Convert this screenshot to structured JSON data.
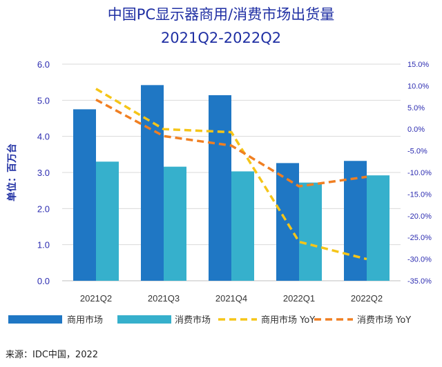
{
  "chart_data": {
    "type": "bar",
    "title": "中国PC显示器商用/消费市场出货量",
    "subtitle": "2021Q2-2022Q2",
    "ylabel": "单位：百万台",
    "categories": [
      "2021Q2",
      "2021Q3",
      "2021Q4",
      "2022Q1",
      "2022Q2"
    ],
    "ylim": [
      0,
      6
    ],
    "y_ticks": [
      "0.0",
      "1.0",
      "2.0",
      "3.0",
      "4.0",
      "5.0",
      "6.0"
    ],
    "y2lim": [
      -35,
      15
    ],
    "y2_ticks": [
      "15.0%",
      "10.0%",
      "5.0%",
      "0.0%",
      "-5.0%",
      "-10.0%",
      "-15.0%",
      "-20.0%",
      "-25.0%",
      "-30.0%",
      "-35.0%"
    ],
    "series": [
      {
        "name": "商用市场",
        "type": "bar",
        "axis": "left",
        "color": "#1f77c4",
        "values": [
          4.75,
          5.42,
          5.14,
          3.26,
          3.32
        ]
      },
      {
        "name": "消费市场",
        "type": "bar",
        "axis": "left",
        "color": "#36b0cc",
        "values": [
          3.3,
          3.16,
          3.03,
          2.72,
          2.92
        ]
      },
      {
        "name": "商用市场 YoY",
        "type": "line",
        "style": "dashed",
        "axis": "right",
        "color": "#f5c518",
        "values": [
          9.3,
          0.0,
          -0.7,
          -26.0,
          -30.0
        ]
      },
      {
        "name": "消费市场 YoY",
        "type": "line",
        "style": "dashed",
        "axis": "right",
        "color": "#f07f22",
        "values": [
          6.8,
          -1.6,
          -3.8,
          -13.2,
          -11.0
        ]
      }
    ],
    "grid": true,
    "legend_position": "bottom",
    "source": "来源：IDC中国，2022"
  }
}
